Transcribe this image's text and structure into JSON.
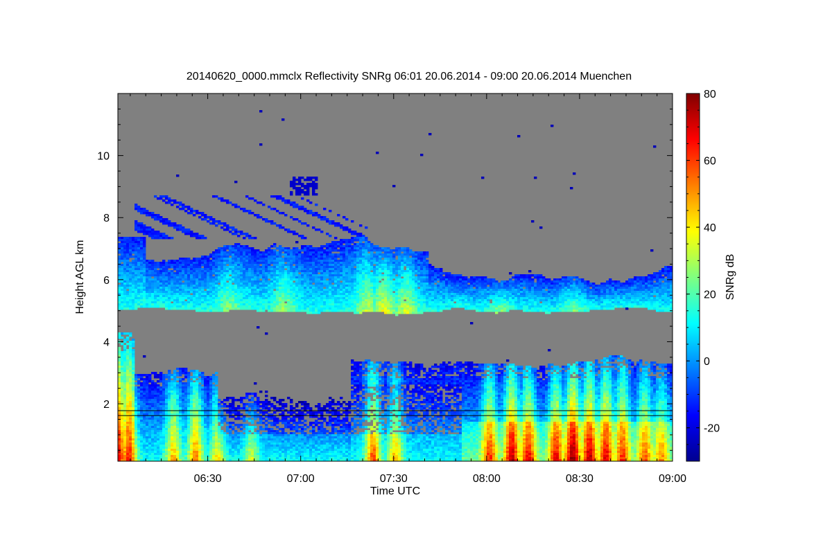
{
  "chart_data": {
    "type": "heatmap",
    "title": "20140620_0000.mmclx Reflectivity SNRg   06:01 20.06.2014 - 09:00 20.06.2014 Muenchen",
    "xlabel": "Time UTC",
    "ylabel": "Height AGL km",
    "xlim": [
      "06:01",
      "09:00"
    ],
    "ylim": [
      0.15,
      12.0
    ],
    "x_ticks": [
      "06:30",
      "07:00",
      "07:30",
      "08:00",
      "08:30",
      "09:00"
    ],
    "y_ticks": [
      2,
      4,
      6,
      8,
      10
    ],
    "background_color": "#808080",
    "colorbar": {
      "label": "SNRg dB",
      "range": [
        -30,
        80
      ],
      "ticks": [
        -20,
        0,
        20,
        40,
        60,
        80
      ],
      "colormap": "jet"
    },
    "reference_lines_km": [
      1.62,
      1.78
    ],
    "layers": [
      {
        "top_km": 7.2,
        "bottom_km": 5.0,
        "t_start": "06:01",
        "t_end": "09:00"
      },
      {
        "top_km": 3.5,
        "bottom_km": 0.15,
        "t_start": "06:01",
        "t_end": "09:00"
      }
    ]
  }
}
